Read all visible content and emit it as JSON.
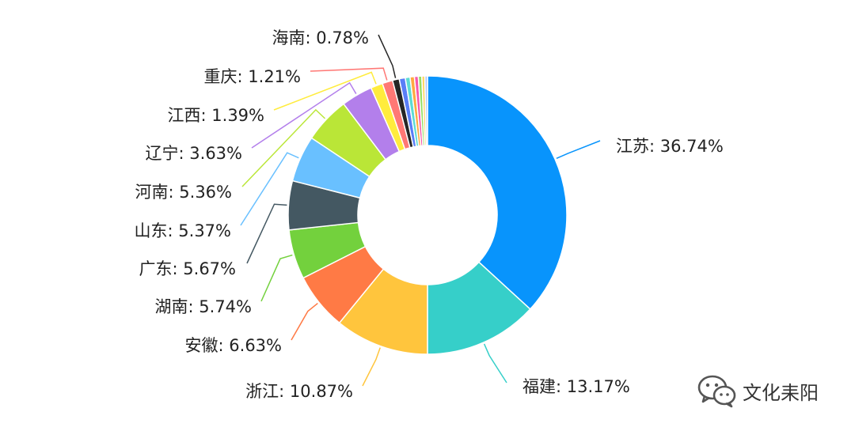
{
  "chart_data": {
    "type": "pie",
    "donut": true,
    "label_format": "{name}: {percent}%",
    "slices": [
      {
        "name": "江苏",
        "percent": "36.74",
        "value": 36.74,
        "color": "#0894fc"
      },
      {
        "name": "福建",
        "percent": "13.17",
        "value": 13.17,
        "color": "#36cfc9"
      },
      {
        "name": "浙江",
        "percent": "10.87",
        "value": 10.87,
        "color": "#ffc53d"
      },
      {
        "name": "安徽",
        "percent": "6.63",
        "value": 6.63,
        "color": "#ff7a45"
      },
      {
        "name": "湖南",
        "percent": "5.74",
        "value": 5.74,
        "color": "#73d13d"
      },
      {
        "name": "广东",
        "percent": "5.67",
        "value": 5.67,
        "color": "#445862"
      },
      {
        "name": "山东",
        "percent": "5.37",
        "value": 5.37,
        "color": "#69c0ff"
      },
      {
        "name": "河南",
        "percent": "5.36",
        "value": 5.36,
        "color": "#bae637"
      },
      {
        "name": "辽宁",
        "percent": "3.63",
        "value": 3.63,
        "color": "#b37feb"
      },
      {
        "name": "江西",
        "percent": "1.39",
        "value": 1.39,
        "color": "#ffec3d"
      },
      {
        "name": "重庆",
        "percent": "1.21",
        "value": 1.21,
        "color": "#ff7875"
      },
      {
        "name": "海南",
        "percent": "0.78",
        "value": 0.78,
        "color": "#262626"
      },
      {
        "name": "",
        "value": 0.7,
        "color": "#597ef7"
      },
      {
        "name": "",
        "value": 0.55,
        "color": "#5cdbd3"
      },
      {
        "name": "",
        "value": 0.5,
        "color": "#ffa940"
      },
      {
        "name": "",
        "value": 0.45,
        "color": "#f759ab"
      },
      {
        "name": "",
        "value": 0.4,
        "color": "#95de64"
      },
      {
        "name": "",
        "value": 0.35,
        "color": "#ffd666"
      },
      {
        "name": "",
        "value": 0.3,
        "color": "#adc6ff"
      }
    ]
  },
  "watermark": {
    "text": "文化耒阳",
    "icon": "wechat-icon",
    "color": "#333333"
  }
}
